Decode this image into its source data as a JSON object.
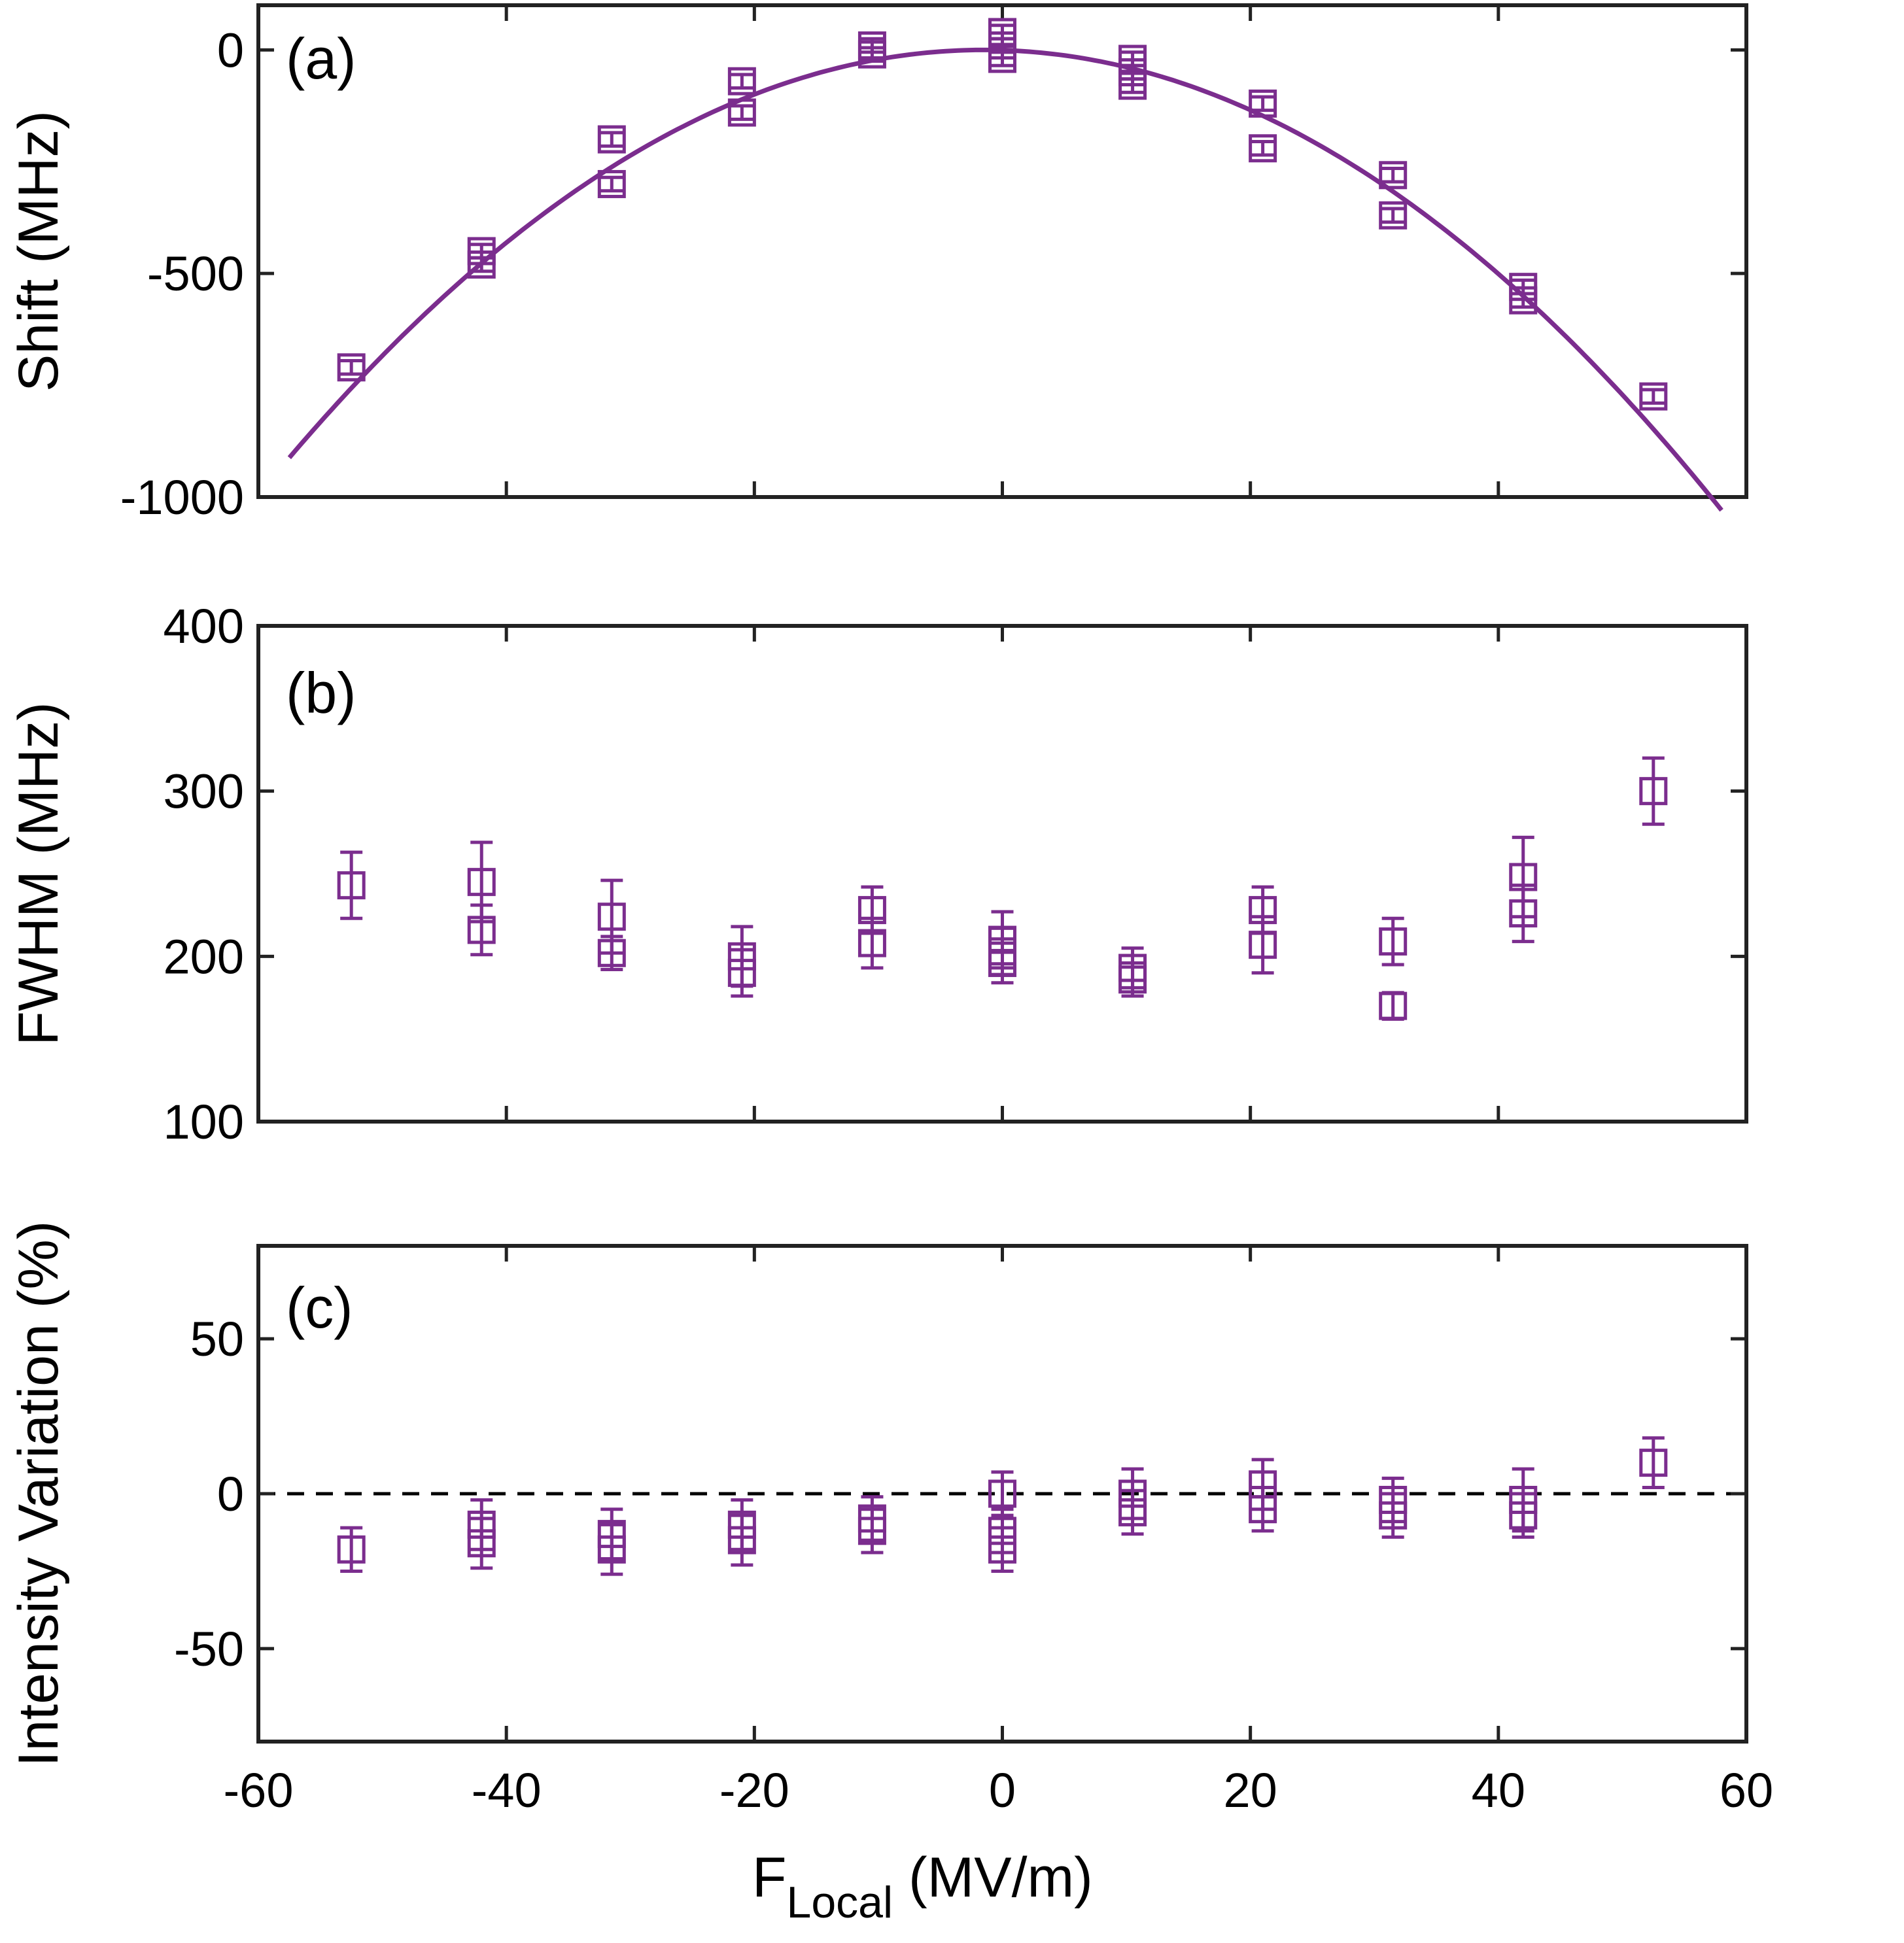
{
  "colors": {
    "series": "#7B2D8E",
    "axis": "#222222",
    "zero_line": "#000000"
  },
  "x_axis": {
    "label_main": "F",
    "label_sub": "Local",
    "label_units": " (MV/m)",
    "range": [
      -60,
      60
    ],
    "ticks": [
      -60,
      -40,
      -20,
      0,
      20,
      40,
      60
    ],
    "tick_labels": [
      "-60",
      "-40",
      "-20",
      "0",
      "20",
      "40",
      "60"
    ]
  },
  "chart_data": [
    {
      "type": "scatter",
      "panel": "(a)",
      "ylabel": "Shift (MHz)",
      "ylim": [
        -1000,
        100
      ],
      "yticks": [
        -1000,
        -500,
        0
      ],
      "ytick_labels": [
        "-1000",
        "-500",
        "0"
      ],
      "marker": "square",
      "series": [
        {
          "name": "Shift",
          "x": [
            -52.5,
            -42,
            -42,
            -31.5,
            -31.5,
            -21,
            -21,
            -10.5,
            -10.5,
            0,
            0,
            0,
            10.5,
            10.5,
            10.5,
            21,
            21,
            31.5,
            31.5,
            42,
            42,
            52.5
          ],
          "y": [
            -710,
            -450,
            -480,
            -200,
            -300,
            -70,
            -140,
            -10,
            10,
            40,
            10,
            -20,
            -20,
            -50,
            -80,
            -120,
            -220,
            -280,
            -370,
            -530,
            -560,
            -775
          ],
          "err": [
            15,
            15,
            15,
            15,
            15,
            15,
            15,
            15,
            15,
            15,
            15,
            15,
            15,
            15,
            15,
            15,
            15,
            15,
            15,
            15,
            15,
            15
          ]
        }
      ],
      "fit": {
        "type": "quadratic",
        "expression": "y = -0.2908 * (x + 1.5)^2",
        "x_range": [
          -57.5,
          58
        ]
      }
    },
    {
      "type": "scatter",
      "panel": "(b)",
      "ylabel": "FWHM (MHz)",
      "ylim": [
        100,
        400
      ],
      "yticks": [
        100,
        200,
        300,
        400
      ],
      "ytick_labels": [
        "100",
        "200",
        "300",
        "400"
      ],
      "marker": "square",
      "series": [
        {
          "name": "FWHM",
          "x": [
            -52.5,
            -42,
            -42,
            -31.5,
            -31.5,
            -21,
            -21,
            -10.5,
            -10.5,
            0,
            0,
            0,
            10.5,
            10.5,
            21,
            21,
            31.5,
            31.5,
            42,
            42,
            52.5
          ],
          "y": [
            243,
            245,
            216,
            224,
            202,
            200,
            190,
            228,
            208,
            210,
            203,
            196,
            193,
            186,
            228,
            207,
            209,
            170,
            248,
            226,
            300
          ],
          "err": [
            20,
            24,
            15,
            22,
            10,
            18,
            14,
            14,
            15,
            17,
            14,
            12,
            12,
            10,
            14,
            17,
            14,
            8,
            24,
            17,
            20
          ]
        }
      ]
    },
    {
      "type": "scatter",
      "panel": "(c)",
      "ylabel": "Intensity Variation (%)",
      "ylim": [
        -80,
        80
      ],
      "yticks": [
        -50,
        0,
        50
      ],
      "ytick_labels": [
        "-50",
        "0",
        "50"
      ],
      "marker": "square",
      "zero_line": true,
      "series": [
        {
          "name": "Intensity Variation",
          "x": [
            -52.5,
            -42,
            -42,
            -31.5,
            -31.5,
            -21,
            -21,
            -10.5,
            -10.5,
            0,
            0,
            0,
            10.5,
            10.5,
            21,
            21,
            31.5,
            31.5,
            42,
            42,
            52.5
          ],
          "y": [
            -18,
            -10,
            -16,
            -13,
            -18,
            -10,
            -15,
            -8,
            -12,
            0,
            -12,
            -18,
            0,
            -6,
            3,
            -5,
            -2,
            -7,
            -2,
            -7,
            10
          ],
          "err": [
            7,
            8,
            8,
            8,
            8,
            8,
            8,
            7,
            7,
            7,
            7,
            7,
            8,
            7,
            8,
            7,
            7,
            7,
            10,
            7,
            8
          ]
        }
      ]
    }
  ]
}
